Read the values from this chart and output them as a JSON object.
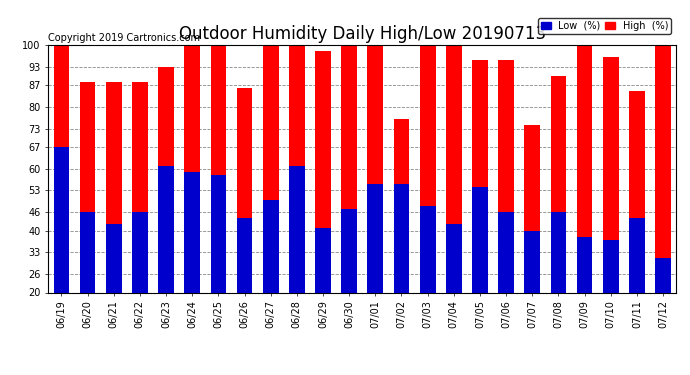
{
  "title": "Outdoor Humidity Daily High/Low 20190713",
  "copyright": "Copyright 2019 Cartronics.com",
  "dates": [
    "06/19",
    "06/20",
    "06/21",
    "06/22",
    "06/23",
    "06/24",
    "06/25",
    "06/26",
    "06/27",
    "06/28",
    "06/29",
    "06/30",
    "07/01",
    "07/02",
    "07/03",
    "07/04",
    "07/05",
    "07/06",
    "07/07",
    "07/08",
    "07/09",
    "07/10",
    "07/11",
    "07/12"
  ],
  "high": [
    100,
    88,
    88,
    88,
    93,
    100,
    100,
    86,
    100,
    100,
    98,
    100,
    100,
    76,
    100,
    100,
    95,
    95,
    74,
    90,
    100,
    96,
    85,
    100
  ],
  "low": [
    67,
    46,
    42,
    46,
    61,
    59,
    58,
    44,
    50,
    61,
    41,
    47,
    55,
    55,
    48,
    42,
    54,
    46,
    40,
    46,
    38,
    37,
    44,
    31
  ],
  "ylim_min": 20,
  "ylim_max": 100,
  "yticks": [
    20,
    26,
    33,
    40,
    46,
    53,
    60,
    67,
    73,
    80,
    87,
    93,
    100
  ],
  "bar_width": 0.6,
  "high_color": "#ff0000",
  "low_color": "#0000cc",
  "bg_color": "#ffffff",
  "grid_color": "#888888",
  "title_fontsize": 12,
  "copyright_fontsize": 7,
  "tick_fontsize": 7,
  "legend_low_label": "Low  (%)",
  "legend_high_label": "High  (%)"
}
